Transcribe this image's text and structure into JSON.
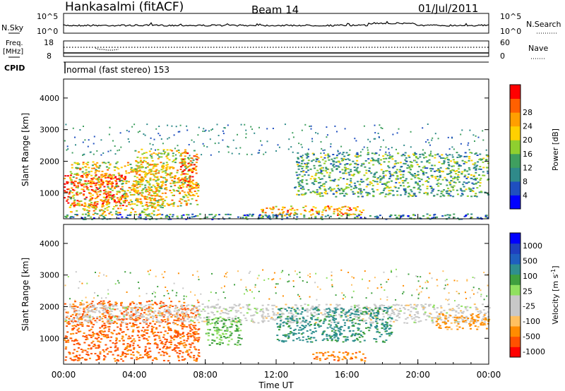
{
  "header": {
    "site": "Hankasalmi (fitACF)",
    "beam": "Beam 14",
    "date": "01/Jul/2011"
  },
  "top_panels": {
    "nsky_label": "N.Sky",
    "nsky_ticks": [
      "10^5",
      "10^0"
    ],
    "nsearch_label": "N.Search",
    "freq_label_1": "Freq.",
    "freq_label_2": "[MHz]",
    "freq_ticks": [
      "18",
      "8"
    ],
    "nave_ticks": [
      "60",
      "0"
    ],
    "nave_label": "Nave",
    "cpid_label": "CPID",
    "cpid_text": "normal (fast stereo) 153"
  },
  "colors": {
    "power_scale": [
      "#0000ff",
      "#1f4fbf",
      "#2f8a8a",
      "#3f9f5f",
      "#8fcf2f",
      "#ffd000",
      "#ff9f00",
      "#ff6000",
      "#ff0000"
    ],
    "velocity_scale": [
      "#ff0000",
      "#ff5000",
      "#ff8c00",
      "#ffc060",
      "#c8c8c8",
      "#c8c8c8",
      "#90e060",
      "#3fa03f",
      "#2f8f8f",
      "#1f5fbf",
      "#1f3fbf",
      "#0000ff"
    ]
  },
  "chart_data": [
    {
      "type": "heatmap",
      "panel": "power",
      "ylabel": "Slant Range [km]",
      "ylim": [
        180,
        4600
      ],
      "yticks": [
        "1000",
        "2000",
        "3000",
        "4000"
      ],
      "xlim": [
        "00:00",
        "24:00"
      ],
      "colorbar_label": "Power [dB]",
      "colorbar_ticks": [
        "4",
        "8",
        "12",
        "16",
        "20",
        "24",
        "28"
      ],
      "regions": [
        {
          "x0": 0.0,
          "x1": 3.5,
          "r0": 600,
          "r1": 1600,
          "level": 8
        },
        {
          "x0": 0.3,
          "x1": 5.6,
          "r0": 300,
          "r1": 2000,
          "level": 5
        },
        {
          "x0": 4.0,
          "x1": 7.6,
          "r0": 600,
          "r1": 2400,
          "level": 5
        },
        {
          "x0": 6.5,
          "x1": 7.5,
          "r0": 1000,
          "r1": 2300,
          "level": 7
        },
        {
          "x0": 11.0,
          "x1": 17.0,
          "r0": 300,
          "r1": 600,
          "level": 6
        },
        {
          "x0": 13.0,
          "x1": 24.0,
          "r0": 900,
          "r1": 2300,
          "level": 3
        },
        {
          "x0": 0.0,
          "x1": 24.0,
          "r0": 180,
          "r1": 350,
          "level": 2
        }
      ]
    },
    {
      "type": "heatmap",
      "panel": "velocity",
      "ylabel": "Slant Range [km]",
      "ylim": [
        180,
        4600
      ],
      "yticks": [
        "1000",
        "2000",
        "3000",
        "4000"
      ],
      "xlim": [
        "00:00",
        "24:00"
      ],
      "xticks": [
        "00:00",
        "04:00",
        "08:00",
        "12:00",
        "16:00",
        "20:00",
        "00:00"
      ],
      "xlabel": "Time UT",
      "colorbar_label": "Velocity [m s^-1]",
      "colorbar_ticks": [
        "1000",
        "500",
        "100",
        "25",
        "-25",
        "-100",
        "-500",
        "-1000"
      ],
      "regions": [
        {
          "x0": 0.0,
          "x1": 7.6,
          "r0": 300,
          "r1": 2200,
          "level": -300
        },
        {
          "x0": 0.0,
          "x1": 24.0,
          "r0": 1500,
          "r1": 2100,
          "level": 0
        },
        {
          "x0": 8.0,
          "x1": 10.0,
          "r0": 800,
          "r1": 1700,
          "level": 60
        },
        {
          "x0": 12.0,
          "x1": 18.5,
          "r0": 900,
          "r1": 2000,
          "level": 200
        },
        {
          "x0": 14.0,
          "x1": 17.0,
          "r0": 300,
          "r1": 600,
          "level": -200
        },
        {
          "x0": 21.0,
          "x1": 24.0,
          "r0": 1300,
          "r1": 1800,
          "level": -150
        }
      ]
    }
  ]
}
